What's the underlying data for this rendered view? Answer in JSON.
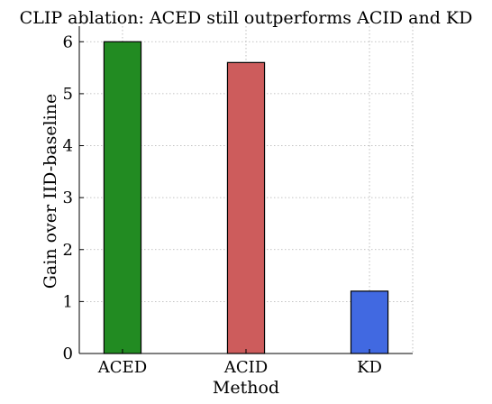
{
  "chart_data": {
    "type": "bar",
    "title": "CLIP ablation: ACED still outperforms ACID and KD",
    "xlabel": "Method",
    "ylabel": "Gain over IID-baseline",
    "categories": [
      "ACED",
      "ACID",
      "KD"
    ],
    "values": [
      6.0,
      5.6,
      1.2
    ],
    "colors": [
      "#228b22",
      "#cd5c5c",
      "#4169e1"
    ],
    "ylim": [
      0,
      6.3
    ],
    "yticks": [
      0,
      1,
      2,
      3,
      4,
      5,
      6
    ],
    "grid": true,
    "legend": "none"
  }
}
